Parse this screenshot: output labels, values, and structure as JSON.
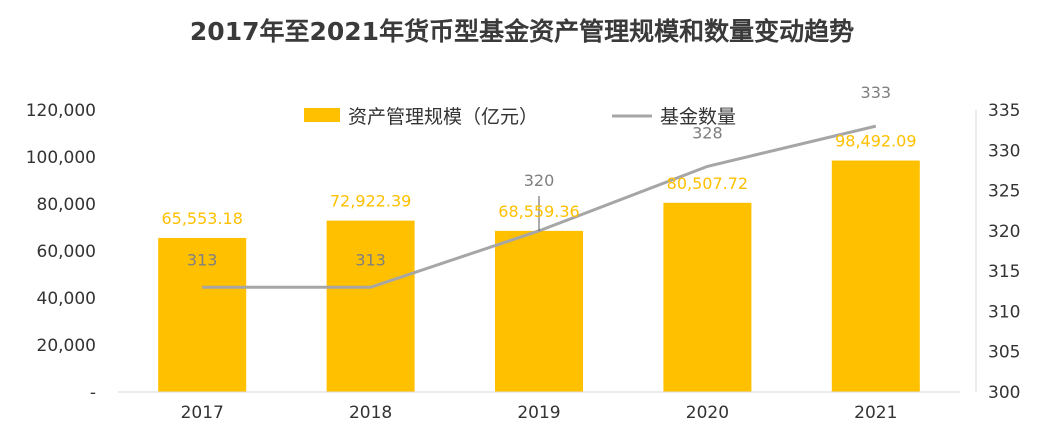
{
  "chart_data": {
    "type": "bar",
    "title": "2017年至2021年货币型基金资产管理规模和数量变动趋势",
    "categories": [
      "2017",
      "2018",
      "2019",
      "2020",
      "2021"
    ],
    "series": [
      {
        "name": "资产管理规模（亿元）",
        "type": "bar",
        "axis": "left",
        "values": [
          65553.18,
          72922.39,
          68559.36,
          80507.72,
          98492.09
        ],
        "labels": [
          "65,553.18",
          "72,922.39",
          "68,559.36",
          "80,507.72",
          "98,492.09"
        ],
        "color": "#ffc000"
      },
      {
        "name": "基金数量",
        "type": "line",
        "axis": "right",
        "values": [
          313,
          313,
          320,
          328,
          333
        ],
        "labels": [
          "313",
          "313",
          "320",
          "328",
          "333"
        ],
        "color": "#a6a6a6"
      }
    ],
    "y_left": {
      "range": [
        0,
        120000
      ],
      "ticks": [
        0,
        20000,
        40000,
        60000,
        80000,
        100000,
        120000
      ],
      "tick_labels": [
        "-",
        "20,000",
        "40,000",
        "60,000",
        "80,000",
        "100,000",
        "120,000"
      ]
    },
    "y_right": {
      "range": [
        300,
        335
      ],
      "ticks": [
        300,
        305,
        310,
        315,
        320,
        325,
        330,
        335
      ],
      "tick_labels": [
        "300",
        "305",
        "310",
        "315",
        "320",
        "325",
        "330",
        "335"
      ]
    },
    "legend": "top-center",
    "grid": false
  }
}
